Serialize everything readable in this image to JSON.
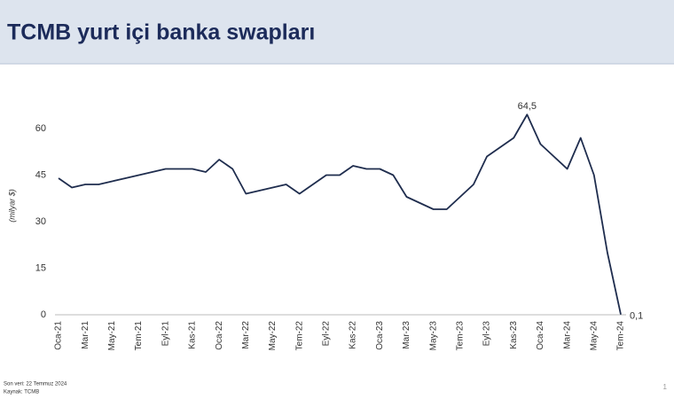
{
  "chart_data": {
    "type": "line",
    "title": "TCMB yurt içi banka swapları",
    "y_label": "(milyar $)",
    "categories": [
      "Oca-21",
      null,
      "Mar-21",
      null,
      "May-21",
      null,
      "Tem-21",
      null,
      "Eyl-21",
      null,
      "Kas-21",
      null,
      "Oca-22",
      null,
      "Mar-22",
      null,
      "May-22",
      null,
      "Tem-22",
      null,
      "Eyl-22",
      null,
      "Kas-22",
      null,
      "Oca-23",
      null,
      "Mar-23",
      null,
      "May-23",
      null,
      "Tem-23",
      null,
      "Eyl-23",
      null,
      "Kas-23",
      null,
      "Oca-24",
      null,
      "Mar-24",
      null,
      "May-24",
      null,
      "Tem-24"
    ],
    "series": [
      {
        "color": "#1f2d4e",
        "values": [
          44,
          41,
          42,
          42,
          43,
          44,
          45,
          46,
          47,
          47,
          47,
          46,
          50,
          47,
          39,
          40,
          41,
          42,
          39,
          42,
          45,
          45,
          48,
          47,
          47,
          45,
          38,
          36,
          34,
          34,
          38,
          42,
          51,
          54,
          57,
          64.5,
          55,
          51,
          47,
          57,
          45,
          20,
          0.1
        ],
        "value_labels": [
          null,
          null,
          null,
          null,
          null,
          null,
          null,
          null,
          null,
          null,
          null,
          null,
          null,
          null,
          null,
          null,
          null,
          null,
          null,
          null,
          null,
          null,
          null,
          null,
          null,
          null,
          null,
          null,
          null,
          null,
          null,
          null,
          null,
          null,
          null,
          "64,5",
          null,
          null,
          null,
          null,
          null,
          null,
          "0,1"
        ]
      }
    ],
    "ylim": [
      0,
      70
    ],
    "yticks": [
      0,
      15,
      30,
      45,
      60
    ],
    "grid": false
  },
  "notes": [
    "Son veri: 22 Temmuz 2024",
    "Kaynak: TCMB"
  ],
  "page_number": "1"
}
